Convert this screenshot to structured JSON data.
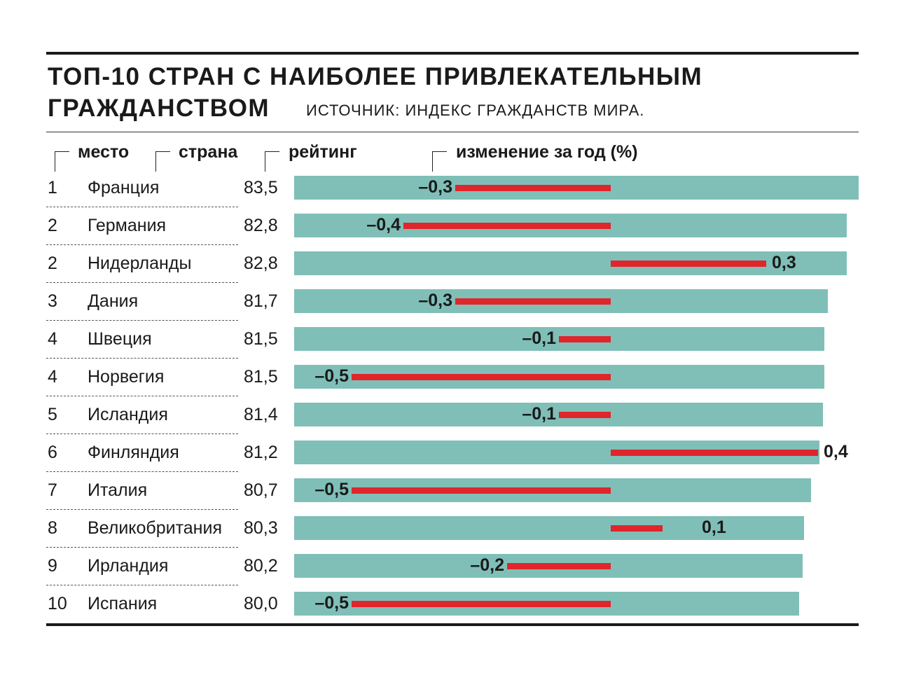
{
  "title_line1": "ТОП-10 СТРАН С НАИБОЛЕЕ ПРИВЛЕКАТЕЛЬНЫМ",
  "title_line2": "ГРАЖДАНСТВОМ",
  "source": "ИСТОЧНИК:  ИНДЕКС ГРАЖДАНСТВ МИРА.",
  "colors": {
    "rating_bar": "#7fbfb7",
    "change_bar": "#e0252b",
    "text": "#1a1a1a"
  },
  "chart_data": {
    "type": "bar",
    "orientation": "horizontal",
    "columns": [
      "место",
      "страна",
      "рейтинг",
      "изменение за год (%)"
    ],
    "places": [
      "1",
      "2",
      "2",
      "3",
      "4",
      "4",
      "5",
      "6",
      "7",
      "8",
      "9",
      "10"
    ],
    "categories": [
      "Франция",
      "Германия",
      "Нидерланды",
      "Дания",
      "Швеция",
      "Норвегия",
      "Исландия",
      "Финляндия",
      "Италия",
      "Великобритания",
      "Ирландия",
      "Испания"
    ],
    "series": [
      {
        "name": "рейтинг",
        "values": [
          83.5,
          82.8,
          82.8,
          81.7,
          81.5,
          81.5,
          81.4,
          81.2,
          80.7,
          80.3,
          80.2,
          80.0
        ],
        "labels": [
          "83,5",
          "82,8",
          "82,8",
          "81,7",
          "81,5",
          "81,5",
          "81,4",
          "81,2",
          "80,7",
          "80,3",
          "80,2",
          "80,0"
        ]
      },
      {
        "name": "изменение за год (%)",
        "values": [
          -0.3,
          -0.4,
          0.3,
          -0.3,
          -0.1,
          -0.5,
          -0.1,
          0.4,
          -0.5,
          0.1,
          -0.2,
          -0.5
        ],
        "labels": [
          "–0,3",
          "–0,4",
          "0,3",
          "–0,3",
          "–0,1",
          "–0,5",
          "–0,1",
          "0,4",
          "–0,5",
          "0,1",
          "–0,2",
          "–0,5"
        ]
      }
    ],
    "grid": false,
    "legend": "none"
  }
}
